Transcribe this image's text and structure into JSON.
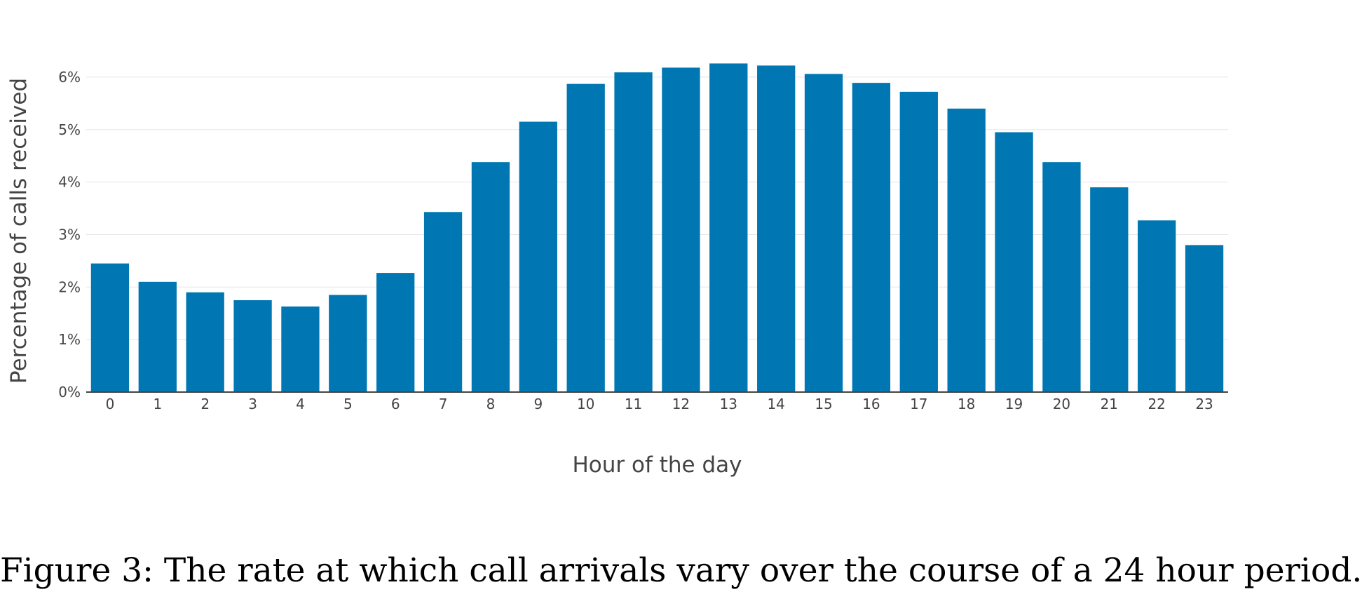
{
  "chart_data": {
    "type": "bar",
    "categories": [
      "0",
      "1",
      "2",
      "3",
      "4",
      "5",
      "6",
      "7",
      "8",
      "9",
      "10",
      "11",
      "12",
      "13",
      "14",
      "15",
      "16",
      "17",
      "18",
      "19",
      "20",
      "21",
      "22",
      "23"
    ],
    "values": [
      2.45,
      2.1,
      1.9,
      1.75,
      1.63,
      1.85,
      2.27,
      3.43,
      4.38,
      5.15,
      5.87,
      6.09,
      6.18,
      6.26,
      6.22,
      6.06,
      5.89,
      5.72,
      5.4,
      4.95,
      4.38,
      3.9,
      3.27,
      2.8
    ],
    "title": "",
    "xlabel": "Hour of the day",
    "ylabel": "Percentage of calls received",
    "ylim": [
      0,
      6.6
    ],
    "yticks": [
      0,
      1,
      2,
      3,
      4,
      5,
      6
    ],
    "ytick_labels": [
      "0%",
      "1%",
      "2%",
      "3%",
      "4%",
      "5%",
      "6%"
    ],
    "grid": true,
    "bar_color": "#0077b3",
    "grid_color": "#e6e6e6",
    "axis_color": "#444444"
  },
  "caption": "Figure 3: The rate at which call arrivals vary over the course of a 24 hour period."
}
